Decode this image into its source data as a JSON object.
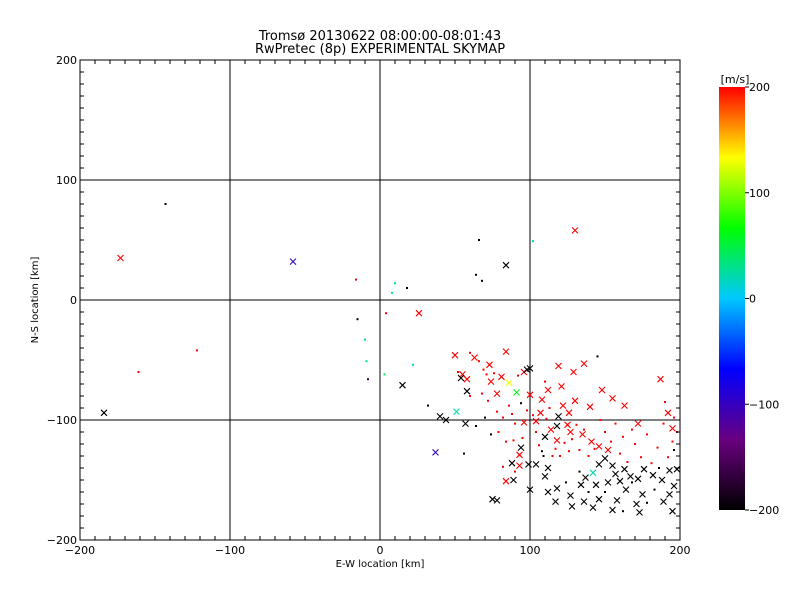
{
  "chart_data": {
    "type": "scatter",
    "title": "Tromsø 20130622 08:00:00-08:01:43",
    "subtitle": "RwPretec (8p) EXPERIMENTAL SKYMAP",
    "xlabel": "E-W location [km]",
    "ylabel": "N-S location [km]",
    "xlim": [
      -200,
      200
    ],
    "ylim": [
      -200,
      200
    ],
    "xticks": [
      -200,
      -100,
      0,
      100,
      200
    ],
    "yticks": [
      -200,
      -100,
      0,
      100,
      200
    ],
    "grid": true,
    "colorbar": {
      "label": "[m/s]",
      "min": -200,
      "max": 200,
      "ticks": [
        -200,
        -100,
        0,
        100,
        200
      ],
      "colors": [
        "#000000",
        "#6a0080",
        "#0000ff",
        "#00c8ff",
        "#00ff00",
        "#ffff00",
        "#ff0000"
      ]
    },
    "series": [
      {
        "marker": "x",
        "points": [
          {
            "x": -184,
            "y": -94,
            "v": -200
          },
          {
            "x": -173,
            "y": 35,
            "v": 200
          },
          {
            "x": -58,
            "y": 32,
            "v": -100
          },
          {
            "x": 26,
            "y": -11,
            "v": 200
          },
          {
            "x": 15,
            "y": -71,
            "v": -200
          },
          {
            "x": 37,
            "y": -127,
            "v": -100
          },
          {
            "x": 40,
            "y": -97,
            "v": -200
          },
          {
            "x": 44,
            "y": -100,
            "v": -200
          },
          {
            "x": 51,
            "y": -93,
            "v": 20
          },
          {
            "x": 57,
            "y": -103,
            "v": -200
          },
          {
            "x": 55,
            "y": -62,
            "v": 200
          },
          {
            "x": 54,
            "y": -65,
            "v": -200
          },
          {
            "x": 58,
            "y": -66,
            "v": 200
          },
          {
            "x": 58,
            "y": -76,
            "v": -200
          },
          {
            "x": 50,
            "y": -46,
            "v": 200
          },
          {
            "x": 63,
            "y": -48,
            "v": 200
          },
          {
            "x": 73,
            "y": -54,
            "v": 200
          },
          {
            "x": 81,
            "y": -64,
            "v": 200
          },
          {
            "x": 84,
            "y": -43,
            "v": 200
          },
          {
            "x": 84,
            "y": 29,
            "v": -200
          },
          {
            "x": 78,
            "y": -78,
            "v": 200
          },
          {
            "x": 74,
            "y": -68,
            "v": 200
          },
          {
            "x": 86,
            "y": -69,
            "v": 130
          },
          {
            "x": 91,
            "y": -77,
            "v": 60
          },
          {
            "x": 96,
            "y": -60,
            "v": 200
          },
          {
            "x": 98,
            "y": -58,
            "v": -200
          },
          {
            "x": 100,
            "y": -79,
            "v": 200
          },
          {
            "x": 100,
            "y": -57,
            "v": -200
          },
          {
            "x": 130,
            "y": 58,
            "v": 200
          },
          {
            "x": 119,
            "y": -55,
            "v": 200
          },
          {
            "x": 129,
            "y": -60,
            "v": 200
          },
          {
            "x": 136,
            "y": -53,
            "v": 200
          },
          {
            "x": 108,
            "y": -83,
            "v": 200
          },
          {
            "x": 112,
            "y": -75,
            "v": 200
          },
          {
            "x": 121,
            "y": -72,
            "v": 200
          },
          {
            "x": 122,
            "y": -88,
            "v": 200
          },
          {
            "x": 126,
            "y": -94,
            "v": 200
          },
          {
            "x": 130,
            "y": -84,
            "v": 200
          },
          {
            "x": 140,
            "y": -89,
            "v": 200
          },
          {
            "x": 148,
            "y": -75,
            "v": 200
          },
          {
            "x": 155,
            "y": -82,
            "v": 200
          },
          {
            "x": 163,
            "y": -88,
            "v": 200
          },
          {
            "x": 172,
            "y": -103,
            "v": 200
          },
          {
            "x": 187,
            "y": -66,
            "v": 200
          },
          {
            "x": 192,
            "y": -94,
            "v": 200
          },
          {
            "x": 195,
            "y": -107,
            "v": 200
          },
          {
            "x": 96,
            "y": -102,
            "v": 200
          },
          {
            "x": 104,
            "y": -101,
            "v": 200
          },
          {
            "x": 107,
            "y": -94,
            "v": 200
          },
          {
            "x": 114,
            "y": -108,
            "v": 200
          },
          {
            "x": 118,
            "y": -105,
            "v": -200
          },
          {
            "x": 119,
            "y": -97,
            "v": -200
          },
          {
            "x": 125,
            "y": -104,
            "v": 200
          },
          {
            "x": 110,
            "y": -114,
            "v": -200
          },
          {
            "x": 118,
            "y": -117,
            "v": 200
          },
          {
            "x": 127,
            "y": -110,
            "v": 200
          },
          {
            "x": 135,
            "y": -112,
            "v": 200
          },
          {
            "x": 141,
            "y": -118,
            "v": 200
          },
          {
            "x": 146,
            "y": -122,
            "v": 200
          },
          {
            "x": 152,
            "y": -125,
            "v": 200
          },
          {
            "x": 93,
            "y": -129,
            "v": 200
          },
          {
            "x": 99,
            "y": -137,
            "v": -200
          },
          {
            "x": 88,
            "y": -136,
            "v": -200
          },
          {
            "x": 94,
            "y": -123,
            "v": -200
          },
          {
            "x": 84,
            "y": -151,
            "v": 200
          },
          {
            "x": 93,
            "y": -138,
            "v": 200
          },
          {
            "x": 104,
            "y": -137,
            "v": -200
          },
          {
            "x": 110,
            "y": -147,
            "v": -200
          },
          {
            "x": 112,
            "y": -160,
            "v": -200
          },
          {
            "x": 118,
            "y": -157,
            "v": -200
          },
          {
            "x": 117,
            "y": -168,
            "v": -200
          },
          {
            "x": 127,
            "y": -163,
            "v": -200
          },
          {
            "x": 134,
            "y": -154,
            "v": -200
          },
          {
            "x": 137,
            "y": -148,
            "v": -200
          },
          {
            "x": 142,
            "y": -144,
            "v": 20
          },
          {
            "x": 144,
            "y": -154,
            "v": -200
          },
          {
            "x": 146,
            "y": -137,
            "v": -200
          },
          {
            "x": 150,
            "y": -132,
            "v": -200
          },
          {
            "x": 155,
            "y": -138,
            "v": -200
          },
          {
            "x": 157,
            "y": -145,
            "v": -200
          },
          {
            "x": 152,
            "y": -152,
            "v": -200
          },
          {
            "x": 160,
            "y": -151,
            "v": -200
          },
          {
            "x": 163,
            "y": -141,
            "v": -200
          },
          {
            "x": 167,
            "y": -147,
            "v": -200
          },
          {
            "x": 172,
            "y": -149,
            "v": -200
          },
          {
            "x": 176,
            "y": -141,
            "v": -200
          },
          {
            "x": 182,
            "y": -146,
            "v": -200
          },
          {
            "x": 188,
            "y": -150,
            "v": -200
          },
          {
            "x": 193,
            "y": -142,
            "v": -200
          },
          {
            "x": 198,
            "y": -141,
            "v": -200
          },
          {
            "x": 196,
            "y": -155,
            "v": -200
          },
          {
            "x": 193,
            "y": -162,
            "v": -200
          },
          {
            "x": 189,
            "y": -168,
            "v": -200
          },
          {
            "x": 195,
            "y": -176,
            "v": -200
          },
          {
            "x": 171,
            "y": -170,
            "v": -200
          },
          {
            "x": 173,
            "y": -177,
            "v": -200
          },
          {
            "x": 175,
            "y": -162,
            "v": -200
          },
          {
            "x": 164,
            "y": -158,
            "v": -200
          },
          {
            "x": 158,
            "y": -167,
            "v": -200
          },
          {
            "x": 155,
            "y": -175,
            "v": -200
          },
          {
            "x": 146,
            "y": -166,
            "v": -200
          },
          {
            "x": 136,
            "y": -168,
            "v": -200
          },
          {
            "x": 128,
            "y": -172,
            "v": -200
          },
          {
            "x": 142,
            "y": -173,
            "v": -200
          },
          {
            "x": 78,
            "y": -167,
            "v": -200
          },
          {
            "x": 75,
            "y": -166,
            "v": -200
          },
          {
            "x": 89,
            "y": -150,
            "v": -200
          },
          {
            "x": 100,
            "y": -158,
            "v": -200
          },
          {
            "x": 112,
            "y": -140,
            "v": -200
          }
        ]
      },
      {
        "marker": "dot",
        "points": [
          {
            "x": -143,
            "y": 80,
            "v": -200
          },
          {
            "x": -161,
            "y": -60,
            "v": 200
          },
          {
            "x": -122,
            "y": -42,
            "v": 200
          },
          {
            "x": -16,
            "y": 17,
            "v": 200
          },
          {
            "x": -15,
            "y": -16,
            "v": -200
          },
          {
            "x": -10,
            "y": -33,
            "v": 30
          },
          {
            "x": -9,
            "y": -51,
            "v": 30
          },
          {
            "x": -8,
            "y": -66,
            "v": -160
          },
          {
            "x": 3,
            "y": -62,
            "v": 40
          },
          {
            "x": 4,
            "y": -11,
            "v": 200
          },
          {
            "x": 8,
            "y": 6,
            "v": 30
          },
          {
            "x": 10,
            "y": 14,
            "v": 30
          },
          {
            "x": 18,
            "y": 10,
            "v": -200
          },
          {
            "x": 22,
            "y": -54,
            "v": 20
          },
          {
            "x": 32,
            "y": -88,
            "v": -200
          },
          {
            "x": 56,
            "y": -128,
            "v": -200
          },
          {
            "x": 64,
            "y": 21,
            "v": -200
          },
          {
            "x": 66,
            "y": 50,
            "v": -200
          },
          {
            "x": 68,
            "y": 16,
            "v": -200
          },
          {
            "x": 102,
            "y": 49,
            "v": 20
          },
          {
            "x": 60,
            "y": -44,
            "v": 200
          },
          {
            "x": 66,
            "y": -51,
            "v": 200
          },
          {
            "x": 69,
            "y": -58,
            "v": 200
          },
          {
            "x": 71,
            "y": -62,
            "v": 200
          },
          {
            "x": 76,
            "y": -61,
            "v": 200
          },
          {
            "x": 68,
            "y": -78,
            "v": 200
          },
          {
            "x": 72,
            "y": -84,
            "v": 200
          },
          {
            "x": 78,
            "y": -93,
            "v": 200
          },
          {
            "x": 82,
            "y": -98,
            "v": 200
          },
          {
            "x": 86,
            "y": -88,
            "v": 200
          },
          {
            "x": 88,
            "y": -95,
            "v": 200
          },
          {
            "x": 90,
            "y": -103,
            "v": 200
          },
          {
            "x": 94,
            "y": -86,
            "v": -200
          },
          {
            "x": 95,
            "y": -115,
            "v": 200
          },
          {
            "x": 98,
            "y": -92,
            "v": 200
          },
          {
            "x": 102,
            "y": -96,
            "v": 200
          },
          {
            "x": 104,
            "y": -110,
            "v": 200
          },
          {
            "x": 106,
            "y": -121,
            "v": 200
          },
          {
            "x": 108,
            "y": -126,
            "v": -200
          },
          {
            "x": 111,
            "y": -99,
            "v": 200
          },
          {
            "x": 113,
            "y": -90,
            "v": 200
          },
          {
            "x": 115,
            "y": -130,
            "v": 200
          },
          {
            "x": 117,
            "y": -124,
            "v": 200
          },
          {
            "x": 120,
            "y": -130,
            "v": 200
          },
          {
            "x": 123,
            "y": -119,
            "v": 200
          },
          {
            "x": 126,
            "y": -126,
            "v": 200
          },
          {
            "x": 128,
            "y": -116,
            "v": 200
          },
          {
            "x": 131,
            "y": -104,
            "v": 200
          },
          {
            "x": 133,
            "y": -125,
            "v": 200
          },
          {
            "x": 136,
            "y": -108,
            "v": 200
          },
          {
            "x": 139,
            "y": -130,
            "v": 200
          },
          {
            "x": 143,
            "y": -124,
            "v": 200
          },
          {
            "x": 145,
            "y": -47,
            "v": -200
          },
          {
            "x": 147,
            "y": -100,
            "v": 200
          },
          {
            "x": 150,
            "y": -110,
            "v": 200
          },
          {
            "x": 154,
            "y": -118,
            "v": 200
          },
          {
            "x": 157,
            "y": -103,
            "v": 200
          },
          {
            "x": 160,
            "y": -128,
            "v": 200
          },
          {
            "x": 162,
            "y": -114,
            "v": 200
          },
          {
            "x": 165,
            "y": -135,
            "v": 200
          },
          {
            "x": 168,
            "y": -108,
            "v": 200
          },
          {
            "x": 170,
            "y": -120,
            "v": 200
          },
          {
            "x": 174,
            "y": -131,
            "v": 200
          },
          {
            "x": 178,
            "y": -112,
            "v": 200
          },
          {
            "x": 181,
            "y": -136,
            "v": 200
          },
          {
            "x": 185,
            "y": -123,
            "v": 200
          },
          {
            "x": 189,
            "y": -103,
            "v": 200
          },
          {
            "x": 192,
            "y": -131,
            "v": 200
          },
          {
            "x": 195,
            "y": -118,
            "v": 200
          },
          {
            "x": 198,
            "y": -110,
            "v": 200
          },
          {
            "x": 183,
            "y": -158,
            "v": -200
          },
          {
            "x": 178,
            "y": -169,
            "v": -200
          },
          {
            "x": 168,
            "y": -152,
            "v": -200
          },
          {
            "x": 162,
            "y": -176,
            "v": -200
          },
          {
            "x": 150,
            "y": -160,
            "v": -200
          },
          {
            "x": 139,
            "y": -160,
            "v": -200
          },
          {
            "x": 124,
            "y": -152,
            "v": -200
          },
          {
            "x": 133,
            "y": -143,
            "v": -200
          },
          {
            "x": 109,
            "y": -130,
            "v": -200
          },
          {
            "x": 89,
            "y": -117,
            "v": 200
          },
          {
            "x": 79,
            "y": -110,
            "v": 200
          },
          {
            "x": 84,
            "y": -118,
            "v": 200
          },
          {
            "x": 82,
            "y": -139,
            "v": 200
          },
          {
            "x": 90,
            "y": -143,
            "v": 200
          },
          {
            "x": 60,
            "y": -80,
            "v": 200
          },
          {
            "x": 52,
            "y": -60,
            "v": 200
          },
          {
            "x": 64,
            "y": -105,
            "v": -200
          },
          {
            "x": 70,
            "y": -98,
            "v": -200
          },
          {
            "x": 74,
            "y": -112,
            "v": -200
          },
          {
            "x": 92,
            "y": -63,
            "v": 200
          },
          {
            "x": 110,
            "y": -68,
            "v": 200
          },
          {
            "x": 190,
            "y": -85,
            "v": 200
          },
          {
            "x": 196,
            "y": -98,
            "v": 200
          },
          {
            "x": 196,
            "y": -125,
            "v": -200
          },
          {
            "x": 186,
            "y": -140,
            "v": -200
          }
        ]
      }
    ]
  }
}
